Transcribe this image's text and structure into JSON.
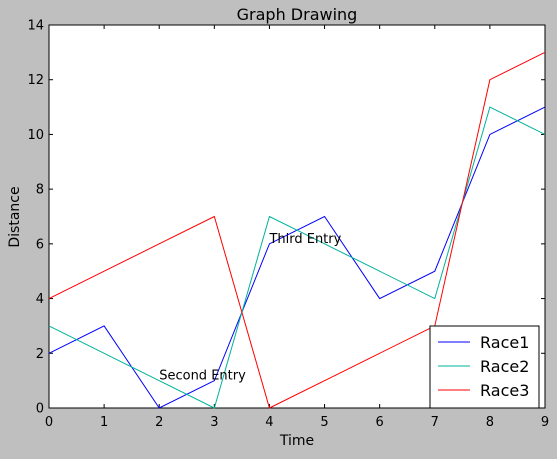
{
  "chart_data": {
    "type": "line",
    "title": "Graph Drawing",
    "xlabel": "Time",
    "ylabel": "Distance",
    "xlim": [
      0,
      9
    ],
    "ylim": [
      0,
      14
    ],
    "x": [
      0,
      1,
      2,
      3,
      4,
      5,
      6,
      7,
      8,
      9
    ],
    "xticks": [
      "0",
      "1",
      "2",
      "3",
      "4",
      "5",
      "6",
      "7",
      "8",
      "9"
    ],
    "yticks": [
      "0",
      "2",
      "4",
      "6",
      "8",
      "10",
      "12",
      "14"
    ],
    "grid": false,
    "legend_position": "lower-right",
    "series": [
      {
        "name": "Race1",
        "color": "#0000ff",
        "values": [
          2,
          3,
          0,
          1,
          6,
          7,
          4,
          5,
          10,
          11
        ]
      },
      {
        "name": "Race2",
        "color": "#00b39b",
        "values": [
          3,
          2,
          1,
          0,
          7,
          6,
          5,
          4,
          11,
          10
        ]
      },
      {
        "name": "Race3",
        "color": "#ff0000",
        "values": [
          4,
          5,
          6,
          7,
          0,
          1,
          2,
          3,
          12,
          13
        ]
      }
    ],
    "annotations": [
      {
        "text": "Second Entry",
        "x": 2,
        "y": 1
      },
      {
        "text": "Third Entry",
        "x": 4,
        "y": 6
      }
    ]
  }
}
